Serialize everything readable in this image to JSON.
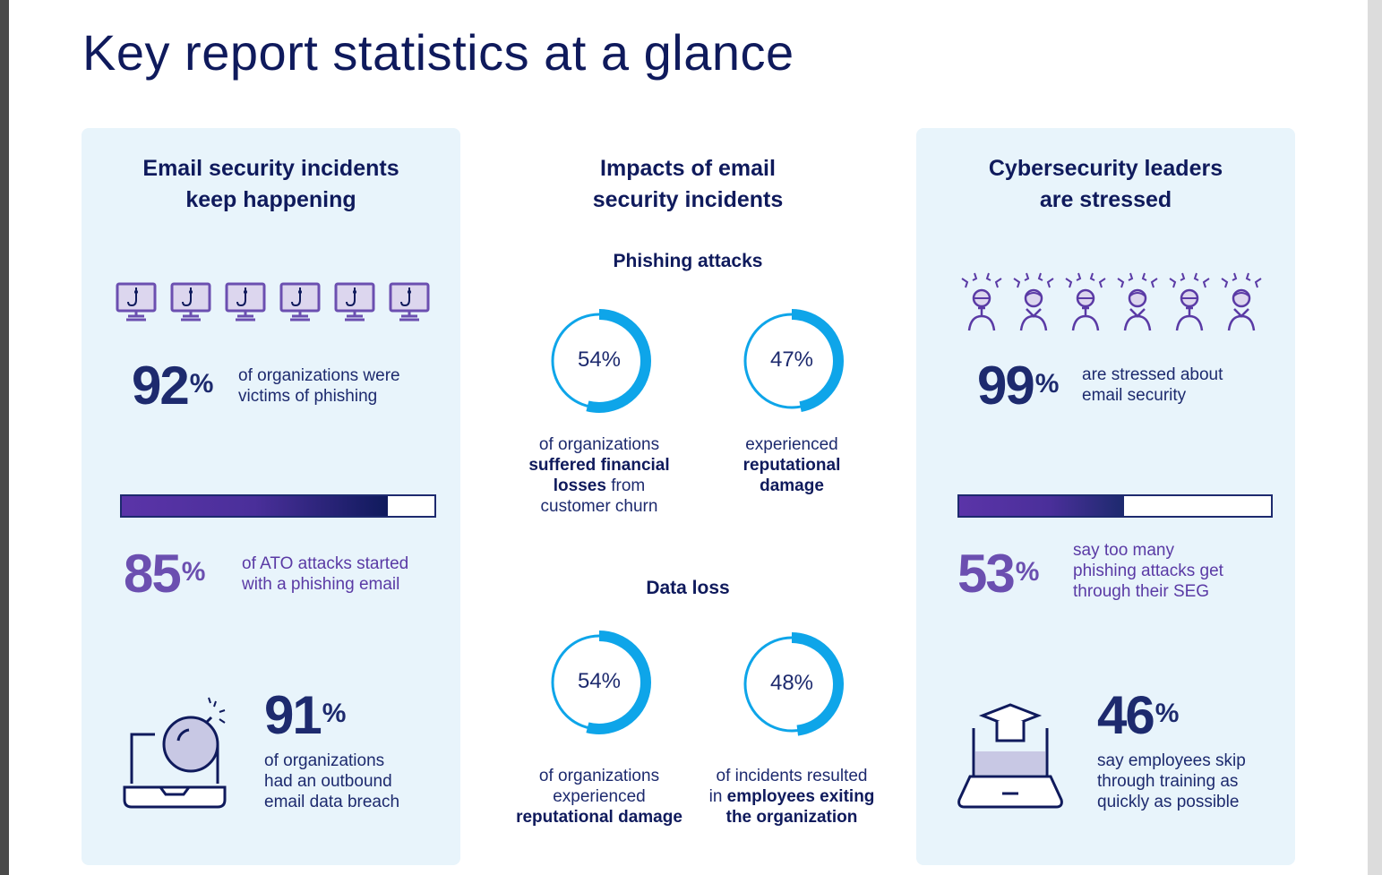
{
  "page": {
    "title": "Key report statistics at a glance"
  },
  "colors": {
    "navy": "#1d2a6e",
    "purple": "#6b4fb0",
    "panel": "#e8f4fb",
    "donut": "#0ea5e9"
  },
  "left": {
    "title_line1": "Email security incidents",
    "title_line2": "keep happening",
    "stat1": {
      "num": "92",
      "pct": "%",
      "line1": "of organizations were",
      "line2": "victims of phishing"
    },
    "bar1": {
      "percent": 85
    },
    "stat2": {
      "num": "85",
      "pct": "%",
      "line1": "of ATO attacks started",
      "line2": "with a phishing email"
    },
    "stat3": {
      "num": "91",
      "pct": "%",
      "line1": "of organizations",
      "line2": "had an outbound",
      "line3": "email data breach"
    }
  },
  "middle": {
    "title_line1": "Impacts of email",
    "title_line2": "security incidents",
    "phishing": {
      "heading": "Phishing attacks",
      "d1": {
        "value": 54,
        "label": "54%",
        "l1": "of organizations",
        "l2": "suffered financial",
        "l3b": "losses",
        "l3": " from",
        "l4": "customer churn"
      },
      "d2": {
        "value": 47,
        "label": "47%",
        "l1": "experienced",
        "l2": "reputational",
        "l3": "damage"
      }
    },
    "dataloss": {
      "heading": "Data loss",
      "d1": {
        "value": 54,
        "label": "54%",
        "l1": "of organizations",
        "l2": "experienced",
        "l3": "reputational damage"
      },
      "d2": {
        "value": 48,
        "label": "48%",
        "l1": "of incidents resulted",
        "l2a": "in ",
        "l2b": "employees exiting",
        "l3": "the organization"
      }
    }
  },
  "right": {
    "title_line1": "Cybersecurity leaders",
    "title_line2": "are stressed",
    "stat1": {
      "num": "99",
      "pct": "%",
      "line1": "are stressed about",
      "line2": "email security"
    },
    "bar1": {
      "percent": 53
    },
    "stat2": {
      "num": "53",
      "pct": "%",
      "line1": "say too many",
      "line2": "phishing attacks get",
      "line3": "through their SEG"
    },
    "stat3": {
      "num": "46",
      "pct": "%",
      "line1": "say employees skip",
      "line2": "through training as",
      "line3": "quickly as possible"
    }
  },
  "icons": {
    "monitors": "phishing-hook-monitor-icon",
    "people": "stressed-person-icon",
    "laptop_bomb": "laptop-bomb-icon",
    "training": "graduation-laptop-icon"
  }
}
